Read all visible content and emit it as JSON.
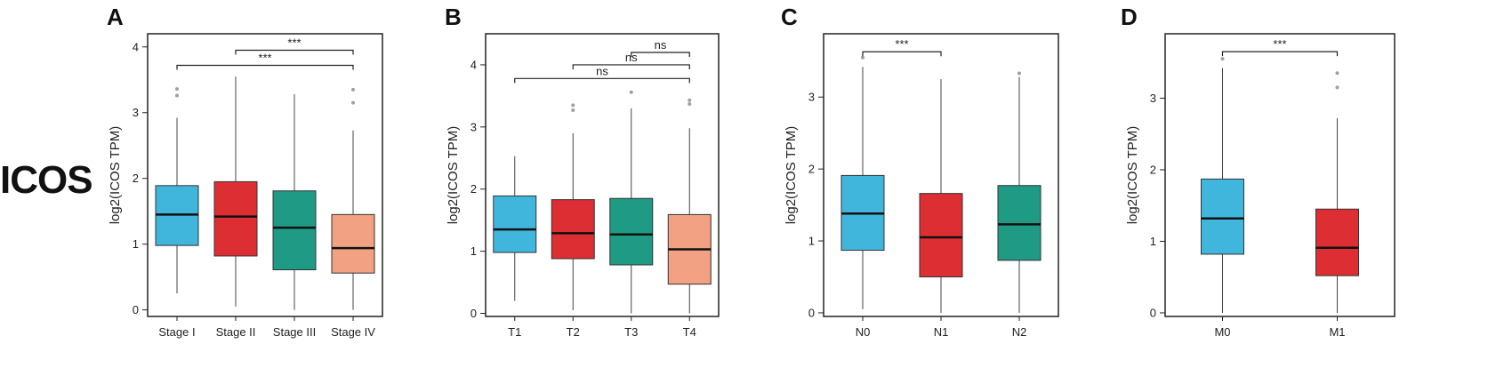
{
  "row_label": "ICOS",
  "colors": {
    "blue": "#41b6dc",
    "red": "#dd2e33",
    "teal": "#1f9a84",
    "salmon": "#f2a283",
    "outlier": "#a0a0a0",
    "axis": "#222222"
  },
  "chart_data": [
    {
      "type": "box",
      "panel_label": "A",
      "ylabel": "log2(ICOS TPM)",
      "ylim": [
        -0.1,
        4.2
      ],
      "yticks": [
        0,
        1,
        2,
        3,
        4
      ],
      "categories": [
        "Stage I",
        "Stage II",
        "Stage III",
        "Stage IV"
      ],
      "colors": [
        "blue",
        "red",
        "teal",
        "salmon"
      ],
      "boxes": [
        {
          "whisker_low": 0.25,
          "q1": 0.98,
          "median": 1.45,
          "q3": 1.89,
          "whisker_high": 2.92,
          "outliers": [
            3.26,
            3.36
          ]
        },
        {
          "whisker_low": 0.05,
          "q1": 0.82,
          "median": 1.42,
          "q3": 1.95,
          "whisker_high": 3.55,
          "outliers": []
        },
        {
          "whisker_low": 0.0,
          "q1": 0.61,
          "median": 1.25,
          "q3": 1.81,
          "whisker_high": 3.28,
          "outliers": []
        },
        {
          "whisker_low": 0.0,
          "q1": 0.56,
          "median": 0.94,
          "q3": 1.45,
          "whisker_high": 2.73,
          "outliers": [
            3.15,
            3.35
          ]
        }
      ],
      "comparisons": [
        {
          "from": 1,
          "to": 3,
          "y": 3.95,
          "label": "***"
        },
        {
          "from": 0,
          "to": 3,
          "y": 3.72,
          "label": "***"
        }
      ]
    },
    {
      "type": "box",
      "panel_label": "B",
      "ylabel": "log2(ICOS TPM)",
      "ylim": [
        -0.05,
        4.5
      ],
      "yticks": [
        0,
        1,
        2,
        3,
        4
      ],
      "categories": [
        "T1",
        "T2",
        "T3",
        "T4"
      ],
      "colors": [
        "blue",
        "red",
        "teal",
        "salmon"
      ],
      "boxes": [
        {
          "whisker_low": 0.2,
          "q1": 0.98,
          "median": 1.35,
          "q3": 1.89,
          "whisker_high": 2.53,
          "outliers": []
        },
        {
          "whisker_low": 0.05,
          "q1": 0.88,
          "median": 1.29,
          "q3": 1.83,
          "whisker_high": 2.9,
          "outliers": [
            3.27,
            3.35
          ]
        },
        {
          "whisker_low": 0.0,
          "q1": 0.78,
          "median": 1.27,
          "q3": 1.85,
          "whisker_high": 3.3,
          "outliers": [
            3.56
          ]
        },
        {
          "whisker_low": 0.0,
          "q1": 0.47,
          "median": 1.03,
          "q3": 1.59,
          "whisker_high": 2.98,
          "outliers": [
            3.37,
            3.43
          ]
        }
      ],
      "comparisons": [
        {
          "from": 2,
          "to": 3,
          "y": 4.2,
          "label": "ns"
        },
        {
          "from": 1,
          "to": 3,
          "y": 4.0,
          "label": "ns"
        },
        {
          "from": 0,
          "to": 3,
          "y": 3.78,
          "label": "ns"
        }
      ]
    },
    {
      "type": "box",
      "panel_label": "C",
      "ylabel": "log2(ICOS TPM)",
      "ylim": [
        -0.05,
        3.88
      ],
      "yticks": [
        0,
        1,
        2,
        3
      ],
      "categories": [
        "N0",
        "N1",
        "N2"
      ],
      "colors": [
        "blue",
        "red",
        "teal"
      ],
      "boxes": [
        {
          "whisker_low": 0.05,
          "q1": 0.87,
          "median": 1.38,
          "q3": 1.91,
          "whisker_high": 3.42,
          "outliers": [
            3.55
          ]
        },
        {
          "whisker_low": 0.0,
          "q1": 0.5,
          "median": 1.05,
          "q3": 1.66,
          "whisker_high": 3.25,
          "outliers": []
        },
        {
          "whisker_low": 0.0,
          "q1": 0.73,
          "median": 1.23,
          "q3": 1.77,
          "whisker_high": 3.28,
          "outliers": [
            3.33
          ]
        }
      ],
      "comparisons": [
        {
          "from": 0,
          "to": 1,
          "y": 3.63,
          "label": "***"
        }
      ]
    },
    {
      "type": "box",
      "panel_label": "D",
      "ylabel": "log2(ICOS TPM)",
      "ylim": [
        -0.05,
        3.9
      ],
      "yticks": [
        0,
        1,
        2,
        3
      ],
      "categories": [
        "M0",
        "M1"
      ],
      "colors": [
        "blue",
        "red"
      ],
      "boxes": [
        {
          "whisker_low": 0.0,
          "q1": 0.82,
          "median": 1.32,
          "q3": 1.87,
          "whisker_high": 3.42,
          "outliers": [
            3.55
          ]
        },
        {
          "whisker_low": 0.0,
          "q1": 0.52,
          "median": 0.91,
          "q3": 1.45,
          "whisker_high": 2.72,
          "outliers": [
            3.15,
            3.35
          ]
        }
      ],
      "comparisons": [
        {
          "from": 0,
          "to": 1,
          "y": 3.65,
          "label": "***"
        }
      ]
    }
  ]
}
